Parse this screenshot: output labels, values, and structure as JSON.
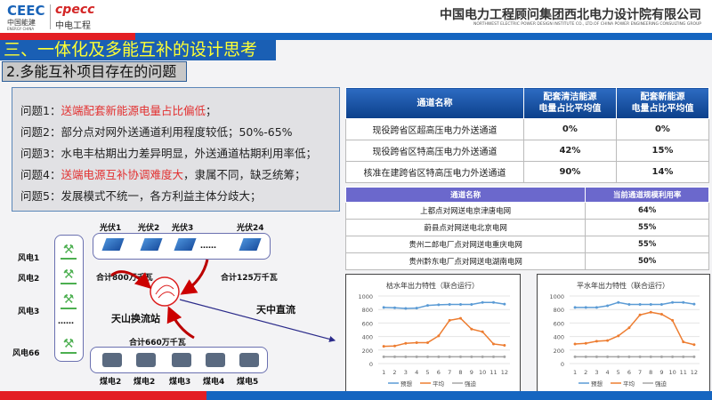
{
  "header": {
    "logo_energy": "CEEC",
    "logo_energy_cn": "中国能建",
    "logo_energy_en": "ENERGY CHINA",
    "logo_cpecc": "cpecc",
    "logo_cpecc_cn": "中电工程",
    "company": "中国电力工程顾问集团西北电力设计院有限公司",
    "company_en": "NORTHWEST ELECTRIC POWER DESIGN INSTITUTE CO., LTD.OF CHINA POWER ENGINEERING CONSULTING GROUP"
  },
  "title": "三、一体化及多能互补的设计思考",
  "subtitle": "2.多能互补项目存在的问题",
  "problems": [
    {
      "label": "问题1：",
      "highlight": "送端配套新能源电量占比偏低",
      "rest": "；"
    },
    {
      "label": "问题2：",
      "highlight": "",
      "rest": "部分点对网外送通道利用程度较低；50%-65%"
    },
    {
      "label": "问题3：",
      "highlight": "",
      "rest": "水电丰枯期出力差异明显，外送通道枯期利用率低；"
    },
    {
      "label": "问题4：",
      "highlight": "送端电源互补协调难度大",
      "rest": "，隶属不同，缺乏统筹；"
    },
    {
      "label": "问题5：",
      "highlight": "",
      "rest": "发展模式不统一，各方利益主体分歧大；"
    }
  ],
  "table1": {
    "headers": [
      "通道名称",
      "配套清洁能源\n电量占比平均值",
      "配套新能源\n电量占比平均值"
    ],
    "rows": [
      [
        "现役跨省区超高压电力外送通道",
        "0%",
        "0%"
      ],
      [
        "现役跨省区特高压电力外送通道",
        "42%",
        "15%"
      ],
      [
        "核准在建跨省区特高压电力外送通道",
        "90%",
        "14%"
      ]
    ]
  },
  "table2": {
    "headers": [
      "通道名称",
      "当前通道规模利用率"
    ],
    "rows": [
      [
        "上都点对网送电京津唐电网",
        "64%"
      ],
      [
        "蔚县点对网送电北京电网",
        "55%"
      ],
      [
        "贵州二郎电厂点对网送电重庆电网",
        "55%"
      ],
      [
        "贵州黔东电厂点对网送电湖南电网",
        "50%"
      ]
    ]
  },
  "diagram": {
    "pv": [
      "光伏1",
      "光伏2",
      "光伏3",
      "光伏24"
    ],
    "ellipsis": "……",
    "wind": [
      "风电1",
      "风电2",
      "风电3",
      "风电66"
    ],
    "coal": [
      "煤电2",
      "煤电2",
      "煤电3",
      "煤电4",
      "煤电5"
    ],
    "wind_total": "合计800万千瓦",
    "pv_total": "合计125万千瓦",
    "coal_total": "合计660万千瓦",
    "station": "天山换流站",
    "line": "天中直流"
  },
  "chart_data": [
    {
      "type": "line",
      "title": "枯水年出力特性（联合运行）",
      "categories": [
        1,
        2,
        3,
        4,
        5,
        6,
        7,
        8,
        9,
        10,
        11,
        12
      ],
      "ylim": [
        0,
        1000
      ],
      "yticks": [
        0,
        200,
        400,
        600,
        800,
        1000
      ],
      "legend": "bottom",
      "grid": true,
      "series": [
        {
          "name": "预想",
          "color": "#5b9bd5",
          "values": [
            830,
            825,
            815,
            820,
            860,
            870,
            875,
            875,
            875,
            905,
            905,
            880
          ]
        },
        {
          "name": "平均",
          "color": "#ed7d31",
          "values": [
            255,
            260,
            300,
            310,
            310,
            410,
            640,
            670,
            510,
            470,
            290,
            270
          ]
        },
        {
          "name": "强迫",
          "color": "#a5a5a5",
          "values": [
            100,
            100,
            100,
            100,
            100,
            100,
            100,
            100,
            100,
            100,
            100,
            100
          ]
        }
      ]
    },
    {
      "type": "line",
      "title": "平水年出力特性（联合运行）",
      "categories": [
        1,
        2,
        3,
        4,
        5,
        6,
        7,
        8,
        9,
        10,
        11,
        12
      ],
      "ylim": [
        0,
        1000
      ],
      "yticks": [
        0,
        200,
        400,
        600,
        800,
        1000
      ],
      "legend": "bottom",
      "grid": true,
      "series": [
        {
          "name": "预想",
          "color": "#5b9bd5",
          "values": [
            830,
            830,
            830,
            855,
            905,
            875,
            875,
            875,
            875,
            905,
            905,
            880
          ]
        },
        {
          "name": "平均",
          "color": "#ed7d31",
          "values": [
            290,
            300,
            330,
            340,
            410,
            530,
            720,
            760,
            730,
            640,
            320,
            280
          ]
        },
        {
          "name": "强迫",
          "color": "#a5a5a5",
          "values": [
            100,
            100,
            100,
            100,
            100,
            100,
            100,
            100,
            100,
            100,
            100,
            100
          ]
        }
      ]
    }
  ]
}
